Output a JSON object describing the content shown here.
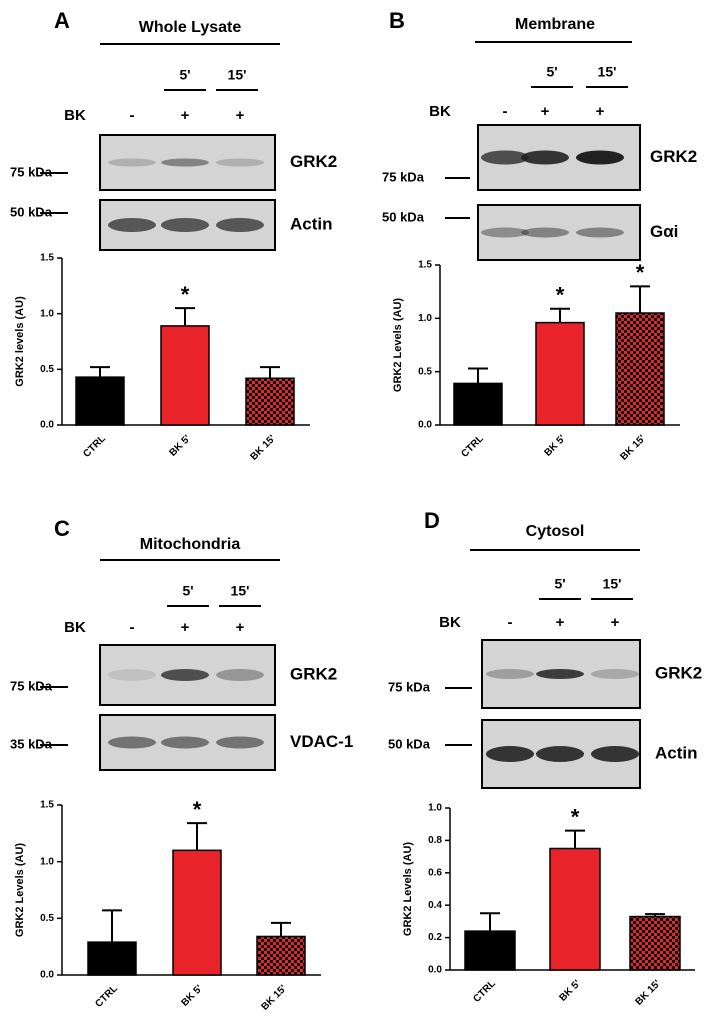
{
  "chart_data": [
    {
      "type": "bar",
      "ylabel": "GRK2 levels (AU)",
      "categories": [
        "CTRL",
        "BK 5'",
        "BK 15'"
      ],
      "values": [
        0.43,
        0.89,
        0.42
      ],
      "errors": [
        0.09,
        0.16,
        0.1
      ],
      "stars": [
        null,
        "*",
        null
      ],
      "colors": [
        "#000000",
        "#e8232a",
        "#e8232a"
      ],
      "fills": [
        "solid",
        "solid",
        "checker"
      ],
      "ylim": [
        0,
        1.5
      ],
      "yticks": [
        {
          "value": 0,
          "label": "0.0"
        },
        {
          "value": 0.5,
          "label": "0.5"
        },
        {
          "value": 1,
          "label": "1.0"
        },
        {
          "value": 1.5,
          "label": "1.5"
        }
      ]
    },
    {
      "type": "bar",
      "ylabel": "GRK2 Levels (AU)",
      "categories": [
        "CTRL",
        "BK 5'",
        "BK 15'"
      ],
      "values": [
        0.39,
        0.96,
        1.05
      ],
      "errors": [
        0.14,
        0.13,
        0.25
      ],
      "stars": [
        null,
        "*",
        "*"
      ],
      "colors": [
        "#000000",
        "#e8232a",
        "#e8232a"
      ],
      "fills": [
        "solid",
        "solid",
        "checker"
      ],
      "ylim": [
        0,
        1.5
      ],
      "yticks": [
        {
          "value": 0,
          "label": "0.0"
        },
        {
          "value": 0.5,
          "label": "0.5"
        },
        {
          "value": 1,
          "label": "1.0"
        },
        {
          "value": 1.5,
          "label": "1.5"
        }
      ]
    },
    {
      "type": "bar",
      "ylabel": "GRK2 Levels (AU)",
      "categories": [
        "CTRL",
        "BK 5'",
        "BK 15'"
      ],
      "values": [
        0.29,
        1.1,
        0.34
      ],
      "errors": [
        0.28,
        0.24,
        0.12
      ],
      "stars": [
        null,
        "*",
        null
      ],
      "colors": [
        "#000000",
        "#e8232a",
        "#e8232a"
      ],
      "fills": [
        "solid",
        "solid",
        "checker"
      ],
      "ylim": [
        0,
        1.5
      ],
      "yticks": [
        {
          "value": 0,
          "label": "0.0"
        },
        {
          "value": 0.5,
          "label": "0.5"
        },
        {
          "value": 1,
          "label": "1.0"
        },
        {
          "value": 1.5,
          "label": "1.5"
        }
      ]
    },
    {
      "type": "bar",
      "ylabel": "GRK2 Levels (AU)",
      "categories": [
        "CTRL",
        "BK 5'",
        "BK 15'"
      ],
      "values": [
        0.24,
        0.75,
        0.33
      ],
      "errors": [
        0.11,
        0.11,
        0.015
      ],
      "stars": [
        null,
        "*",
        null
      ],
      "colors": [
        "#000000",
        "#e8232a",
        "#e8232a"
      ],
      "fills": [
        "solid",
        "solid",
        "checker"
      ],
      "ylim": [
        0,
        1
      ],
      "yticks": [
        {
          "value": 0,
          "label": "0.0"
        },
        {
          "value": 0.2,
          "label": "0.2"
        },
        {
          "value": 0.4,
          "label": "0.4"
        },
        {
          "value": 0.6,
          "label": "0.6"
        },
        {
          "value": 0.8,
          "label": "0.8"
        },
        {
          "value": 1,
          "label": "1.0"
        }
      ]
    }
  ],
  "blots": [
    {
      "letter": "A",
      "fraction": "Whole Lysate",
      "times": [
        "5'",
        "15'"
      ],
      "treatment": "BK",
      "signs": [
        "-",
        "+",
        "+"
      ],
      "bands": [
        {
          "protein": "GRK2",
          "marker": "75 kDa"
        },
        {
          "protein": "Actin",
          "marker": "50 kDa"
        }
      ]
    },
    {
      "letter": "B",
      "fraction": "Membrane",
      "times": [
        "5'",
        "15'"
      ],
      "treatment": "BK",
      "signs": [
        "-",
        "+",
        "+"
      ],
      "bands": [
        {
          "protein": "GRK2",
          "marker": "75 kDa"
        },
        {
          "protein": "Gαi",
          "marker": "50 kDa"
        }
      ]
    },
    {
      "letter": "C",
      "fraction": "Mitochondria",
      "times": [
        "5'",
        "15'"
      ],
      "treatment": "BK",
      "signs": [
        "-",
        "+",
        "+"
      ],
      "bands": [
        {
          "protein": "GRK2",
          "marker": "75 kDa"
        },
        {
          "protein": "VDAC-1",
          "marker": "35 kDa"
        }
      ]
    },
    {
      "letter": "D",
      "fraction": "Cytosol",
      "times": [
        "5'",
        "15'"
      ],
      "treatment": "BK",
      "signs": [
        "-",
        "+",
        "+"
      ],
      "bands": [
        {
          "protein": "GRK2",
          "marker": "75 kDa"
        },
        {
          "protein": "Actin",
          "marker": "50 kDa"
        }
      ]
    }
  ]
}
